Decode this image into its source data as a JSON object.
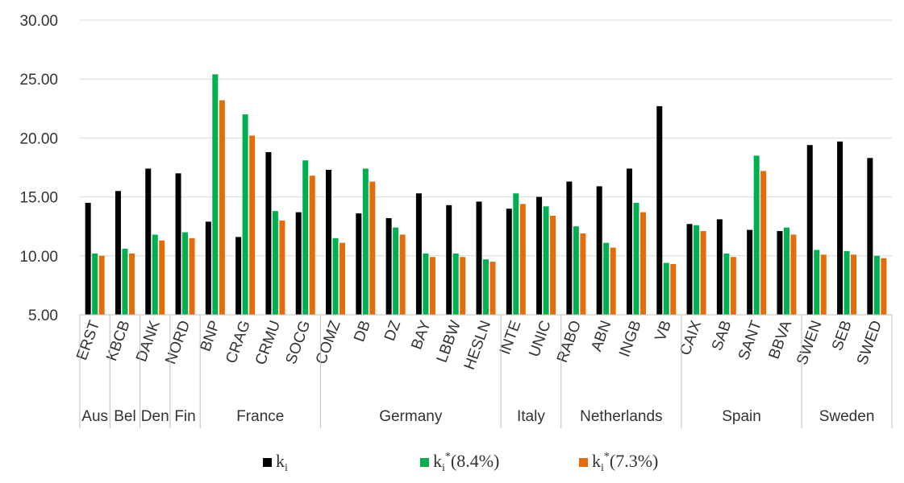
{
  "chart_data": {
    "type": "bar",
    "title": "",
    "xlabel": "",
    "ylabel": "",
    "ylim": [
      5,
      30
    ],
    "yticks": [
      "5.00",
      "10.00",
      "15.00",
      "20.00",
      "25.00",
      "30.00"
    ],
    "grid": true,
    "legend_position": "bottom",
    "categories": [
      "ERST",
      "KBCB",
      "DANK",
      "NORD",
      "BNP",
      "CRAG",
      "CRMU",
      "SOCG",
      "COMZ",
      "DB",
      "DZ",
      "BAY",
      "LBBW",
      "HESLN",
      "INTE",
      "UNIC",
      "RABO",
      "ABN",
      "INGB",
      "VB",
      "CAIX",
      "SAB",
      "SANT",
      "BBVA",
      "SWEN",
      "SEB",
      "SWED"
    ],
    "groups": [
      {
        "label": "Aus",
        "count": 1
      },
      {
        "label": "Bel",
        "count": 1
      },
      {
        "label": "Den",
        "count": 1
      },
      {
        "label": "Fin",
        "count": 1
      },
      {
        "label": "France",
        "count": 4
      },
      {
        "label": "Germany",
        "count": 6
      },
      {
        "label": "Italy",
        "count": 2
      },
      {
        "label": "Netherlands",
        "count": 4
      },
      {
        "label": "Spain",
        "count": 4
      },
      {
        "label": "Sweden",
        "count": 3
      }
    ],
    "series": [
      {
        "name": "k_i",
        "legend_base": "k",
        "legend_sub": "i",
        "legend_sup": "",
        "legend_suffix": "",
        "color": "#000000",
        "values": [
          14.5,
          15.5,
          17.4,
          17.0,
          12.9,
          11.6,
          18.8,
          13.7,
          17.3,
          13.6,
          13.2,
          15.3,
          14.3,
          14.6,
          14.0,
          15.0,
          16.3,
          15.9,
          17.4,
          22.7,
          12.7,
          13.1,
          12.2,
          12.1,
          19.4,
          19.7,
          18.3
        ]
      },
      {
        "name": "k_i*(8.4%)",
        "legend_base": "k",
        "legend_sub": "i",
        "legend_sup": "*",
        "legend_suffix": "(8.4%)",
        "color": "#00B050",
        "values": [
          10.2,
          10.6,
          11.8,
          12.0,
          25.4,
          22.0,
          13.8,
          18.1,
          11.5,
          17.4,
          12.4,
          10.2,
          10.2,
          9.7,
          15.3,
          14.2,
          12.5,
          11.1,
          14.5,
          9.4,
          12.6,
          10.2,
          18.5,
          12.4,
          10.5,
          10.4,
          10.0
        ]
      },
      {
        "name": "k_i*(7.3%)",
        "legend_base": "k",
        "legend_sub": "i",
        "legend_sup": "*",
        "legend_suffix": "(7.3%)",
        "color": "#E46C0A",
        "values": [
          10.0,
          10.2,
          11.3,
          11.5,
          23.2,
          20.2,
          13.0,
          16.8,
          11.1,
          16.3,
          11.8,
          9.9,
          9.9,
          9.5,
          14.4,
          13.4,
          11.9,
          10.7,
          13.7,
          9.3,
          12.1,
          9.9,
          17.2,
          11.8,
          10.1,
          10.1,
          9.8
        ]
      }
    ]
  }
}
